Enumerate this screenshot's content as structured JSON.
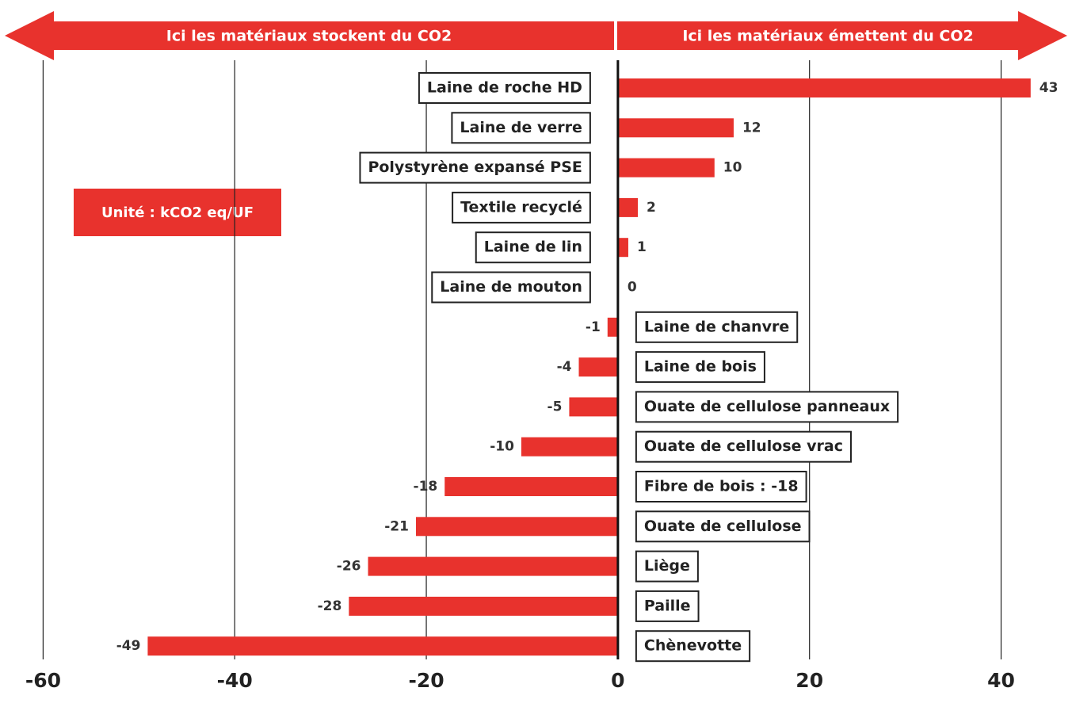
{
  "chart_data": {
    "type": "barh",
    "annotations": [
      "Ici les matériaux stockent du CO2",
      "Ici les matériaux émettent du CO2",
      "Unité : kCO2 eq/UF"
    ],
    "categories": [
      "Laine de roche HD",
      "Laine de verre",
      "Polystyrène expansé PSE",
      "Textile recyclé",
      "Laine de lin",
      "Laine de mouton",
      "Laine de chanvre",
      "Laine de bois",
      "Ouate de cellulose panneaux",
      "Ouate de cellulose vrac",
      "Fibre de bois : -18",
      "Ouate de cellulose",
      "Liège",
      "Paille",
      "Chènevotte"
    ],
    "values": [
      43,
      12,
      10,
      2,
      1,
      0,
      -1,
      -4,
      -5,
      -10,
      -18,
      -21,
      -26,
      -28,
      -49
    ],
    "color": "#e8322d",
    "xlim": [
      -64.5,
      47.4
    ],
    "xticks": [
      -60,
      -40,
      -20,
      0,
      20,
      40
    ],
    "grid": true
  }
}
